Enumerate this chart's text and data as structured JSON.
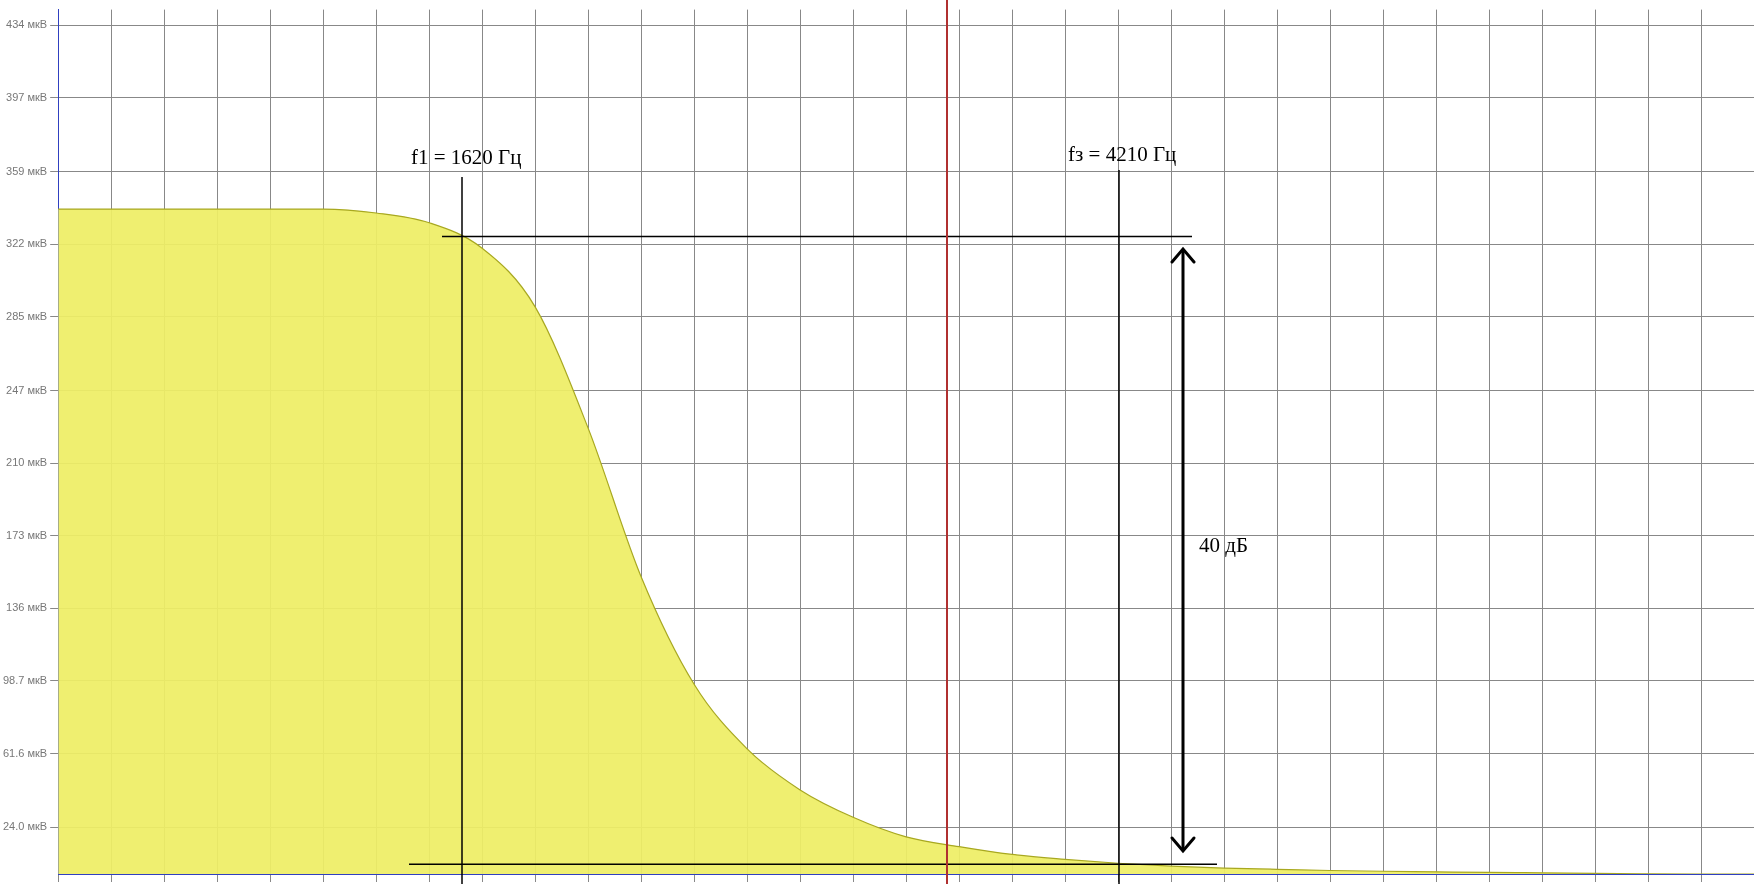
{
  "chart_data": {
    "type": "area",
    "categories": [
      null,
      null,
      null,
      null,
      null,
      null,
      null,
      null,
      null,
      null,
      null,
      null,
      null,
      null,
      null,
      null,
      null,
      null,
      null,
      null,
      null,
      null,
      null,
      null,
      null,
      null,
      null,
      null,
      null,
      null,
      null,
      null,
      null
    ],
    "series": [
      {
        "color": "#eeee66",
        "values": [
          340,
          340,
          340,
          340,
          340,
          340,
          338,
          333,
          320,
          290,
          228,
          152,
          97,
          64,
          43,
          29,
          19,
          14,
          10,
          7.5,
          5.5,
          4,
          3,
          2.4,
          1.8,
          1.4,
          1.1,
          0.8,
          0.6,
          0.3,
          0.1,
          0,
          0
        ]
      }
    ],
    "ylim": [
      0,
      442
    ],
    "yticks": [
      {
        "value": 24.0,
        "label": "24.0 мкВ"
      },
      {
        "value": 61.6,
        "label": "61.6 мкВ"
      },
      {
        "value": 98.7,
        "label": "98.7 мкВ"
      },
      {
        "value": 136,
        "label": "136 мкВ"
      },
      {
        "value": 173,
        "label": "173 мкВ"
      },
      {
        "value": 210,
        "label": "210 мкВ"
      },
      {
        "value": 247,
        "label": "247 мкВ"
      },
      {
        "value": 285,
        "label": "285 мкВ"
      },
      {
        "value": 322,
        "label": "322 мкВ"
      },
      {
        "value": 359,
        "label": "359 мкВ"
      },
      {
        "value": 397,
        "label": "397 мкВ"
      },
      {
        "value": 434,
        "label": "434 мкВ"
      }
    ],
    "annotations": [
      "f1 = 1620 Гц",
      "fз = 4210 Гц",
      "40 дБ"
    ],
    "ref_lines": [
      {
        "axis": "y",
        "value": 326,
        "color": "#000000"
      },
      {
        "axis": "y",
        "value": 5,
        "color": "#000000"
      }
    ],
    "grid": true,
    "legend": false,
    "tick_labels": "y",
    "marker": "none",
    "line_style": "solid"
  }
}
